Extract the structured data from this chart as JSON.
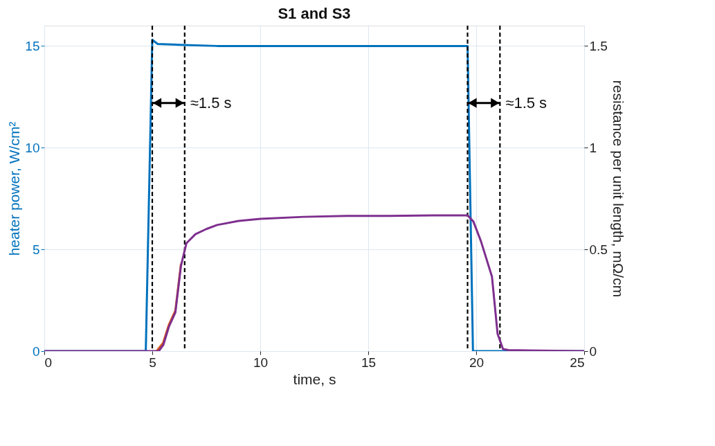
{
  "chart_data": {
    "type": "line",
    "title": "S1 and S3",
    "xlabel": "time, s",
    "ylabel": "heater power, W/cm²",
    "y2label": "resistance per unit length, mΩ/cm",
    "xlim": [
      0,
      25
    ],
    "xticks": [
      0,
      5,
      10,
      15,
      20,
      25
    ],
    "ylim": [
      0,
      16
    ],
    "yticks": [
      0,
      5,
      10,
      15
    ],
    "y2lim": [
      0,
      1.6
    ],
    "y2ticks": [
      0,
      0.5,
      1,
      1.5
    ],
    "grid": true,
    "line_style": "solid",
    "marker": "none",
    "series": [
      {
        "color": "#0072bd",
        "x": [
          0,
          4.7,
          5.0,
          5.25,
          6.5,
          8,
          19.6,
          19.85,
          25
        ],
        "values": [
          0,
          0,
          15.3,
          15.1,
          15.05,
          15.0,
          15.0,
          0,
          0
        ]
      },
      {
        "color": "#d95319",
        "axis": "y2",
        "x": [
          5.2,
          5.5,
          5.77,
          6.07,
          6.33
        ],
        "values": [
          0,
          0.04,
          0.13,
          0.2,
          0.43
        ]
      },
      {
        "color": "#7e2f8e",
        "axis": "y2",
        "x": [
          0,
          5.3,
          5.51,
          5.77,
          6.07,
          6.33,
          6.58,
          7,
          7.5,
          8,
          9,
          10,
          12,
          14,
          16,
          18,
          19.6,
          19.87,
          20.22,
          20.73,
          20.99,
          21.24,
          21.5,
          25
        ],
        "values": [
          0,
          0,
          0.03,
          0.12,
          0.19,
          0.42,
          0.53,
          0.575,
          0.6,
          0.62,
          0.64,
          0.65,
          0.66,
          0.665,
          0.665,
          0.667,
          0.667,
          0.637,
          0.54,
          0.366,
          0.085,
          0.01,
          0.005,
          0
        ]
      }
    ],
    "ref_lines": [
      {
        "axis": "x",
        "value": 5.0,
        "color": "#000000",
        "line_style": "dashed"
      },
      {
        "axis": "x",
        "value": 6.5,
        "color": "#000000",
        "line_style": "dashed"
      },
      {
        "axis": "x",
        "value": 19.6,
        "color": "#000000",
        "line_style": "dashed"
      },
      {
        "axis": "x",
        "value": 21.1,
        "color": "#000000",
        "line_style": "dashed"
      }
    ],
    "annotations": [
      {
        "text": "≈1.5 s",
        "x": 6.5,
        "y": 12.2
      },
      {
        "text": "≈1.5 s",
        "x": 21.1,
        "y": 12.2
      }
    ]
  }
}
